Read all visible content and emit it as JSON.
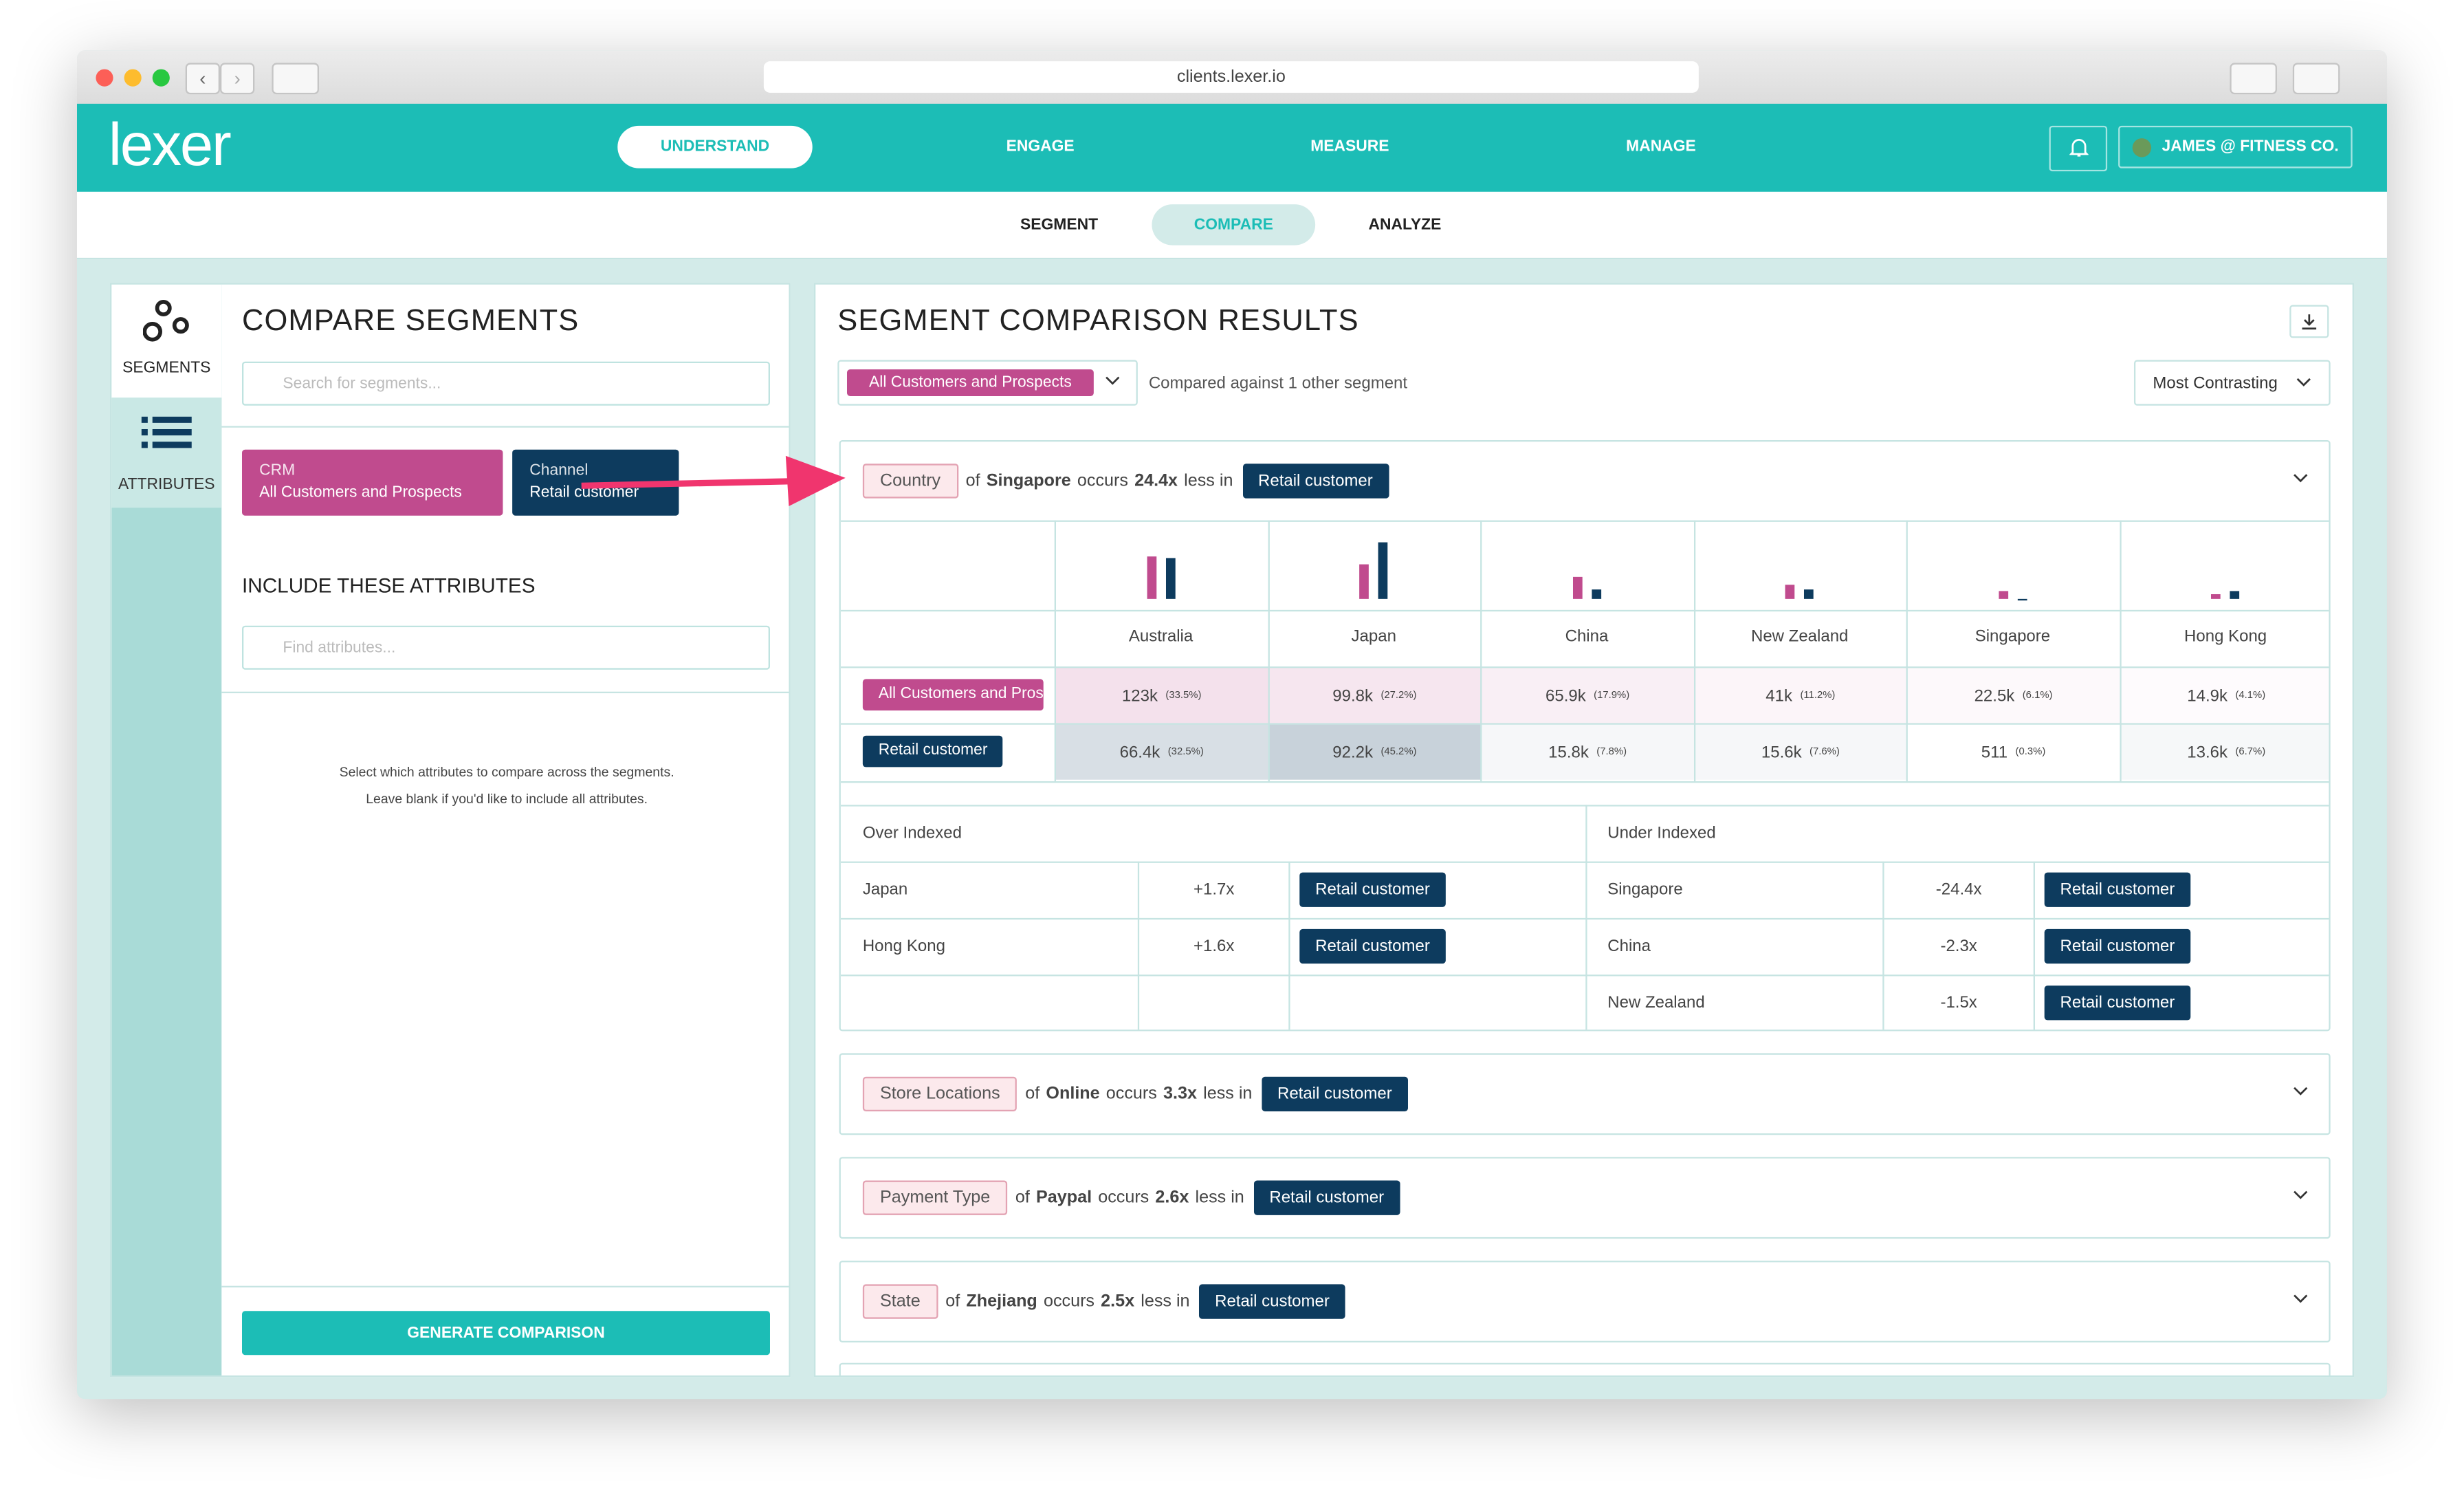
{
  "browser": {
    "url": "clients.lexer.io"
  },
  "nav": {
    "logo": "lexer",
    "items": [
      "UNDERSTAND",
      "ENGAGE",
      "MEASURE",
      "MANAGE"
    ],
    "account": "JAMES @ FITNESS CO."
  },
  "subnav": [
    "SEGMENT",
    "COMPARE",
    "ANALYZE"
  ],
  "sidebar": [
    "SEGMENTS",
    "ATTRIBUTES"
  ],
  "left": {
    "title": "COMPARE SEGMENTS",
    "search_placeholder": "Search for segments...",
    "segments": [
      {
        "group": "CRM",
        "name": "All Customers and Prospects"
      },
      {
        "group": "Channel",
        "name": "Retail customer"
      }
    ],
    "attributes_title": "INCLUDE THESE ATTRIBUTES",
    "attributes_placeholder": "Find attributes...",
    "hint": [
      "Select which attributes to compare across the segments.",
      "Leave blank if you'd like to include all attributes."
    ],
    "button": "GENERATE COMPARISON"
  },
  "right": {
    "title": "SEGMENT COMPARISON RESULTS",
    "segment": "All Customers and Prospects",
    "compared": "Compared against 1 other segment",
    "sort": "Most Contrasting",
    "cards": [
      {
        "attribute": "Country",
        "pre": "of",
        "value": "Singapore",
        "mid": "occurs",
        "factor": "24.4x",
        "post": "less in",
        "segment": "Retail customer"
      },
      {
        "attribute": "Store Locations",
        "pre": "of",
        "value": "Online",
        "mid": "occurs",
        "factor": "3.3x",
        "post": "less in",
        "segment": "Retail customer"
      },
      {
        "attribute": "Payment Type",
        "pre": "of",
        "value": "Paypal",
        "mid": "occurs",
        "factor": "2.6x",
        "post": "less in",
        "segment": "Retail customer"
      },
      {
        "attribute": "State",
        "pre": "of",
        "value": "Zhejiang",
        "mid": "occurs",
        "factor": "2.5x",
        "post": "less in",
        "segment": "Retail customer"
      }
    ],
    "detail": {
      "columns": [
        "Australia",
        "Japan",
        "China",
        "New Zealand",
        "Singapore",
        "Hong Kong"
      ],
      "rows": [
        {
          "segment": "All Customers and Prospects",
          "color": "#c04b8e",
          "cells": [
            {
              "count": "123k",
              "share": 33.5,
              "share_label": "(33.5%)"
            },
            {
              "count": "99.8k",
              "share": 27.2,
              "share_label": "(27.2%)"
            },
            {
              "count": "65.9k",
              "share": 17.9,
              "share_label": "(17.9%)"
            },
            {
              "count": "41k",
              "share": 11.2,
              "share_label": "(11.2%)"
            },
            {
              "count": "22.5k",
              "share": 6.1,
              "share_label": "(6.1%)"
            },
            {
              "count": "14.9k",
              "share": 4.1,
              "share_label": "(4.1%)"
            }
          ]
        },
        {
          "segment": "Retail customer",
          "color": "#0d3b5e",
          "cells": [
            {
              "count": "66.4k",
              "share": 32.5,
              "share_label": "(32.5%)"
            },
            {
              "count": "92.2k",
              "share": 45.2,
              "share_label": "(45.2%)"
            },
            {
              "count": "15.8k",
              "share": 7.8,
              "share_label": "(7.8%)"
            },
            {
              "count": "15.6k",
              "share": 7.6,
              "share_label": "(7.6%)"
            },
            {
              "count": "511",
              "share": 0.3,
              "share_label": "(0.3%)"
            },
            {
              "count": "13.6k",
              "share": 6.7,
              "share_label": "(6.7%)"
            }
          ]
        }
      ],
      "over": {
        "title": "Over Indexed",
        "rows": [
          [
            "Japan",
            "+1.7x",
            "Retail customer"
          ],
          [
            "Hong Kong",
            "+1.6x",
            "Retail customer"
          ]
        ]
      },
      "under": {
        "title": "Under Indexed",
        "rows": [
          [
            "Singapore",
            "-24.4x",
            "Retail customer"
          ],
          [
            "China",
            "-2.3x",
            "Retail customer"
          ],
          [
            "New Zealand",
            "-1.5x",
            "Retail customer"
          ]
        ]
      }
    }
  }
}
